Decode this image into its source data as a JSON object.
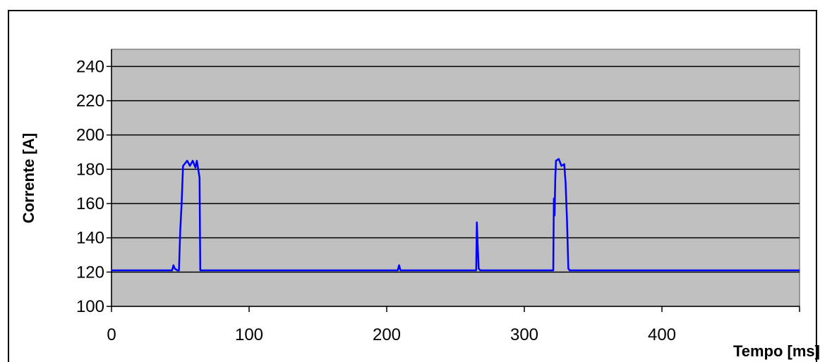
{
  "chart_data": {
    "type": "line",
    "title": "",
    "xlabel": "Tempo [ms]",
    "ylabel": "Corrente [A]",
    "xlim": [
      0,
      500
    ],
    "ylim": [
      100,
      250
    ],
    "xticks": [
      0,
      100,
      200,
      300,
      400
    ],
    "yticks": [
      100,
      120,
      140,
      160,
      180,
      200,
      220,
      240
    ],
    "grid": true,
    "legend": "none",
    "colors": {
      "plot_background": "#c0c0c0",
      "line": "#0000ff",
      "grid": "#000000"
    },
    "series": [
      {
        "x": [
          0,
          44,
          45,
          46,
          48,
          49,
          50,
          51,
          52,
          55,
          57,
          59,
          61,
          62,
          63,
          64,
          64.5,
          66,
          100,
          150,
          208,
          209,
          210,
          250,
          264,
          265,
          265.5,
          266,
          266.8,
          268,
          300,
          320,
          321,
          321.5,
          322,
          322.5,
          323,
          325,
          327,
          329,
          330,
          331,
          332,
          333,
          380,
          440,
          500
        ],
        "y": [
          121,
          121,
          124,
          122,
          121,
          121,
          145,
          160,
          182,
          185,
          182,
          185,
          181,
          185,
          180,
          175,
          121,
          121,
          121,
          121,
          121,
          124,
          121,
          121,
          121,
          121,
          149,
          138,
          122,
          121,
          121,
          121,
          121,
          163,
          153,
          175,
          185,
          186,
          182,
          183,
          172,
          150,
          122,
          121,
          121,
          121,
          121
        ]
      }
    ]
  }
}
